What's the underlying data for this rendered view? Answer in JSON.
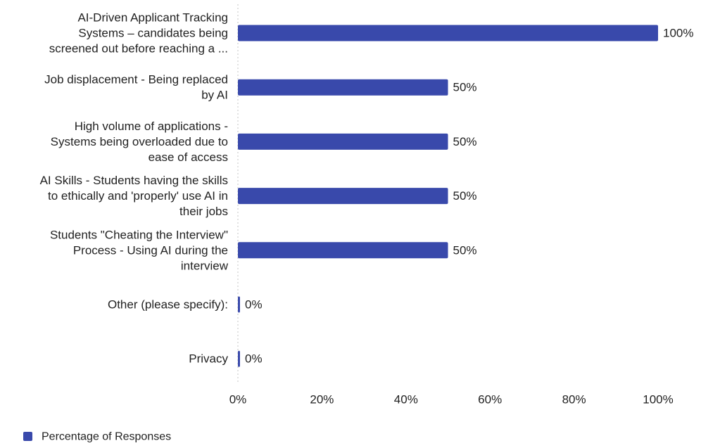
{
  "chart_data": {
    "type": "bar",
    "orientation": "horizontal",
    "categories": [
      [
        "AI-Driven Applicant Tracking",
        "Systems – candidates being",
        "screened out before reaching a ..."
      ],
      [
        "Job displacement - Being replaced",
        "by AI"
      ],
      [
        "High volume of applications -",
        "Systems being overloaded due to",
        "ease of access"
      ],
      [
        "AI Skills - Students having the skills",
        "to ethically and 'properly' use AI in",
        "their jobs"
      ],
      [
        "Students \"Cheating the Interview\"",
        "Process - Using AI during the",
        "interview"
      ],
      [
        "Other (please specify):"
      ],
      [
        "Privacy"
      ]
    ],
    "series": [
      {
        "name": "Percentage of Responses",
        "values": [
          100,
          50,
          50,
          50,
          50,
          0,
          0
        ],
        "data_labels": [
          "100%",
          "50%",
          "50%",
          "50%",
          "50%",
          "0%",
          "0%"
        ],
        "color": "#3949ab"
      }
    ],
    "xlim": [
      0,
      100
    ],
    "x_ticks": [
      0,
      20,
      40,
      60,
      80,
      100
    ],
    "x_tick_labels": [
      "0%",
      "20%",
      "40%",
      "60%",
      "80%",
      "100%"
    ],
    "grid": true,
    "legend_position": "bottom-left"
  }
}
